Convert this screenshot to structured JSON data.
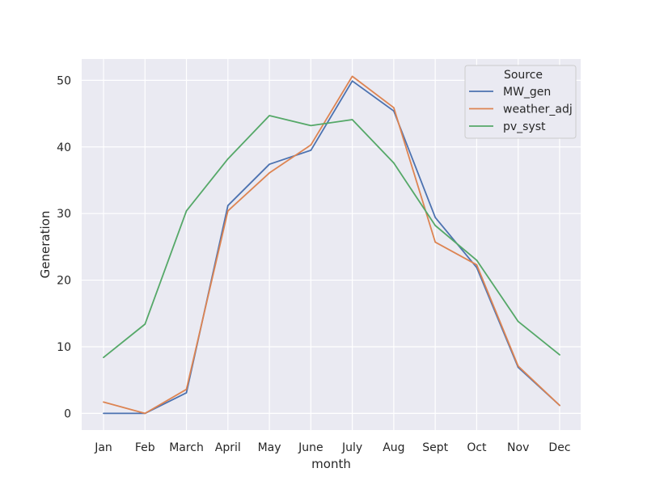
{
  "chart_data": {
    "type": "line",
    "title": "",
    "xlabel": "month",
    "ylabel": "Generation",
    "categories": [
      "Jan",
      "Feb",
      "March",
      "April",
      "May",
      "June",
      "July",
      "Aug",
      "Sept",
      "Oct",
      "Nov",
      "Dec"
    ],
    "ylim": [
      -2.5,
      53.2
    ],
    "yticks": [
      0,
      10,
      20,
      30,
      40,
      50
    ],
    "grid": true,
    "background": "#eaeaf2",
    "legend": {
      "title": "Source",
      "position": "top-right"
    },
    "series": [
      {
        "name": "MW_gen",
        "color": "#4c72b0",
        "values": [
          0,
          0,
          3.1,
          31.2,
          37.4,
          39.5,
          49.9,
          45.4,
          29.4,
          21.9,
          6.9,
          1.2
        ]
      },
      {
        "name": "weather_adj",
        "color": "#dd8452",
        "values": [
          1.7,
          0,
          3.6,
          30.4,
          36.1,
          40.3,
          50.6,
          45.9,
          25.7,
          22.3,
          7.1,
          1.2
        ]
      },
      {
        "name": "pv_syst",
        "color": "#55a868",
        "values": [
          8.4,
          13.4,
          30.4,
          38.2,
          44.7,
          43.2,
          44.1,
          37.6,
          28.2,
          23.0,
          13.8,
          8.8
        ]
      }
    ]
  }
}
